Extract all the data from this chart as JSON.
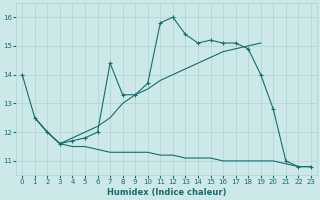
{
  "xlabel": "Humidex (Indice chaleur)",
  "bg_color": "#cce8e8",
  "line_color": "#1a6b6b",
  "grid_color": "#aad4d4",
  "xlim": [
    -0.5,
    23.5
  ],
  "ylim": [
    10.5,
    16.5
  ],
  "xticks": [
    0,
    1,
    2,
    3,
    4,
    5,
    6,
    7,
    8,
    9,
    10,
    11,
    12,
    13,
    14,
    15,
    16,
    17,
    18,
    19,
    20,
    21,
    22,
    23
  ],
  "yticks": [
    11,
    12,
    13,
    14,
    15,
    16
  ],
  "series": [
    {
      "x": [
        0,
        1,
        2,
        3,
        4,
        5,
        6,
        7,
        8,
        9,
        10,
        11,
        12,
        13,
        14,
        15,
        16,
        17,
        18,
        19,
        20,
        21,
        22,
        23
      ],
      "y": [
        14.0,
        12.5,
        12.0,
        11.6,
        11.7,
        11.8,
        12.0,
        14.4,
        13.3,
        13.3,
        13.7,
        15.8,
        16.0,
        15.4,
        15.1,
        15.2,
        15.1,
        15.1,
        14.9,
        14.0,
        12.8,
        11.0,
        10.8,
        10.8
      ],
      "markers": true
    },
    {
      "x": [
        1,
        2,
        3,
        4,
        5,
        6,
        7,
        8,
        9,
        10,
        11,
        12,
        13,
        14,
        15,
        16,
        17,
        18,
        19
      ],
      "y": [
        12.5,
        12.0,
        11.6,
        11.8,
        12.0,
        12.2,
        12.5,
        13.0,
        13.3,
        13.5,
        13.8,
        14.0,
        14.2,
        14.4,
        14.6,
        14.8,
        14.9,
        15.0,
        15.1
      ],
      "markers": false
    },
    {
      "x": [
        1,
        2,
        3,
        4,
        5,
        6,
        7,
        8,
        9,
        10,
        11,
        12,
        13,
        14,
        15,
        16,
        17,
        18,
        19,
        20,
        21,
        22,
        23
      ],
      "y": [
        12.5,
        12.0,
        11.6,
        11.5,
        11.5,
        11.4,
        11.3,
        11.3,
        11.3,
        11.3,
        11.2,
        11.2,
        11.1,
        11.1,
        11.1,
        11.0,
        11.0,
        11.0,
        11.0,
        11.0,
        10.9,
        10.8,
        10.8
      ],
      "markers": false
    }
  ]
}
